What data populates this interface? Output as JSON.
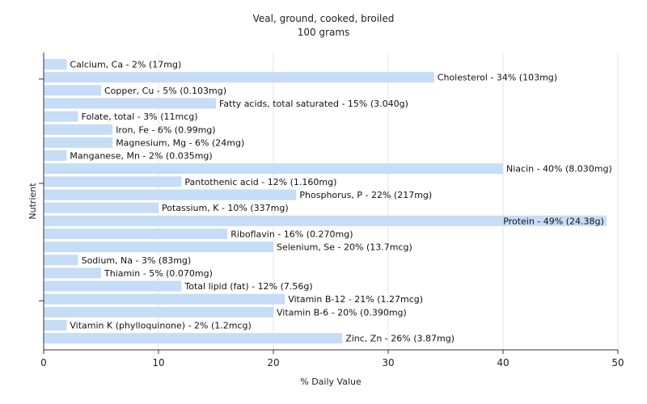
{
  "chart_data": {
    "type": "bar",
    "orientation": "horizontal",
    "title": "Veal, ground, cooked, broiled",
    "subtitle": "100 grams",
    "xlabel": "% Daily Value",
    "ylabel": "Nutrient",
    "xlim": [
      0,
      50
    ],
    "xticks": [
      0,
      10,
      20,
      30,
      40,
      50
    ],
    "grid": true,
    "bar_color": "#c6dcf7",
    "categories": [
      "Calcium, Ca",
      "Cholesterol",
      "Copper, Cu",
      "Fatty acids, total saturated",
      "Folate, total",
      "Iron, Fe",
      "Magnesium, Mg",
      "Manganese, Mn",
      "Niacin",
      "Pantothenic acid",
      "Phosphorus, P",
      "Potassium, K",
      "Protein",
      "Riboflavin",
      "Selenium, Se",
      "Sodium, Na",
      "Thiamin",
      "Total lipid (fat)",
      "Vitamin B-12",
      "Vitamin B-6",
      "Vitamin K (phylloquinone)",
      "Zinc, Zn"
    ],
    "values": [
      2,
      34,
      5,
      15,
      3,
      6,
      6,
      2,
      40,
      12,
      22,
      10,
      49,
      16,
      20,
      3,
      5,
      12,
      21,
      20,
      2,
      26
    ],
    "labels": [
      "Calcium, Ca - 2% (17mg)",
      "Cholesterol - 34% (103mg)",
      "Copper, Cu - 5% (0.103mg)",
      "Fatty acids, total saturated - 15% (3.040g)",
      "Folate, total - 3% (11mcg)",
      "Iron, Fe - 6% (0.99mg)",
      "Magnesium, Mg - 6% (24mg)",
      "Manganese, Mn - 2% (0.035mg)",
      "Niacin - 40% (8.030mg)",
      "Pantothenic acid - 12% (1.160mg)",
      "Phosphorus, P - 22% (217mg)",
      "Potassium, K - 10% (337mg)",
      "Protein - 49% (24.38g)",
      "Riboflavin - 16% (0.270mg)",
      "Selenium, Se - 20% (13.7mcg)",
      "Sodium, Na - 3% (83mg)",
      "Thiamin - 5% (0.070mg)",
      "Total lipid (fat) - 12% (7.56g)",
      "Vitamin B-12 - 21% (1.27mcg)",
      "Vitamin B-6 - 20% (0.390mg)",
      "Vitamin K (phylloquinone) - 2% (1.2mcg)",
      "Zinc, Zn - 26% (3.87mg)"
    ]
  }
}
